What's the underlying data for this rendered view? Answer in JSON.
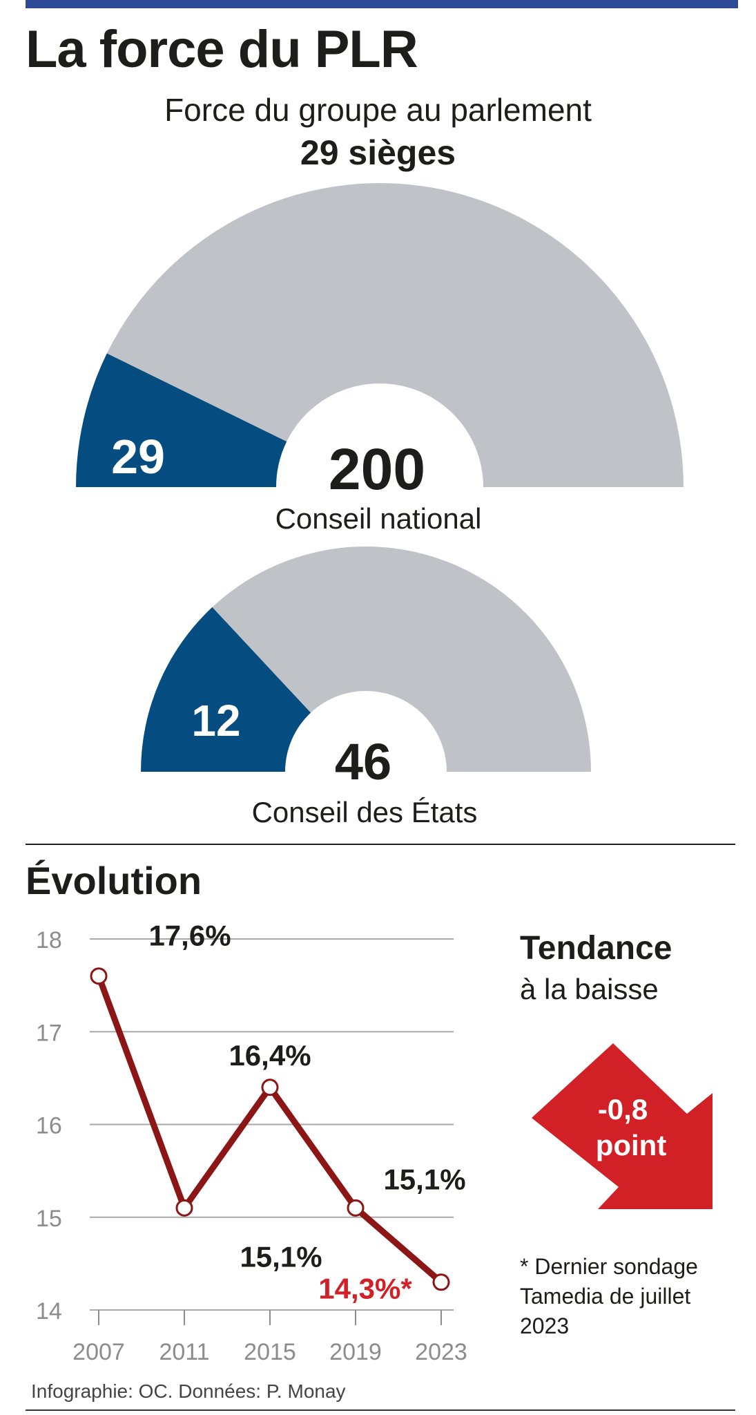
{
  "title": "La force du PLR",
  "subtitle": "Force du groupe au parlement",
  "subtitle_strong": "29 sièges",
  "colors": {
    "plr": "#054d80",
    "other": "#bfc3c7",
    "line": "#8c1515",
    "accent": "#d22027",
    "bar": "#2d4a97"
  },
  "parliament": [
    {
      "name": "Conseil national",
      "total": 200,
      "plr": 29
    },
    {
      "name": "Conseil des États",
      "total": 46,
      "plr": 12
    }
  ],
  "evolution": {
    "title": "Évolution"
  },
  "chart_data": {
    "type": "line",
    "x": [
      "2007",
      "2011",
      "2015",
      "2019",
      "2023"
    ],
    "series": [
      {
        "values": [
          17.6,
          15.1,
          16.4,
          15.1,
          14.3
        ],
        "labels": [
          "17,6%",
          "15,1%",
          "16,4%",
          "15,1%",
          "14,3%*"
        ]
      }
    ],
    "yticks": [
      "18",
      "17",
      "16",
      "15",
      "14"
    ],
    "ylim": [
      14,
      18
    ],
    "grid": true
  },
  "tendance": {
    "title": "Tendance",
    "subtitle": "à la baisse",
    "arrow_value": "-0,8",
    "arrow_unit": "point"
  },
  "footnote": "* Dernier sondage Tamedia de juillet 2023",
  "source": "Infographie: OC. Données: P. Monay"
}
